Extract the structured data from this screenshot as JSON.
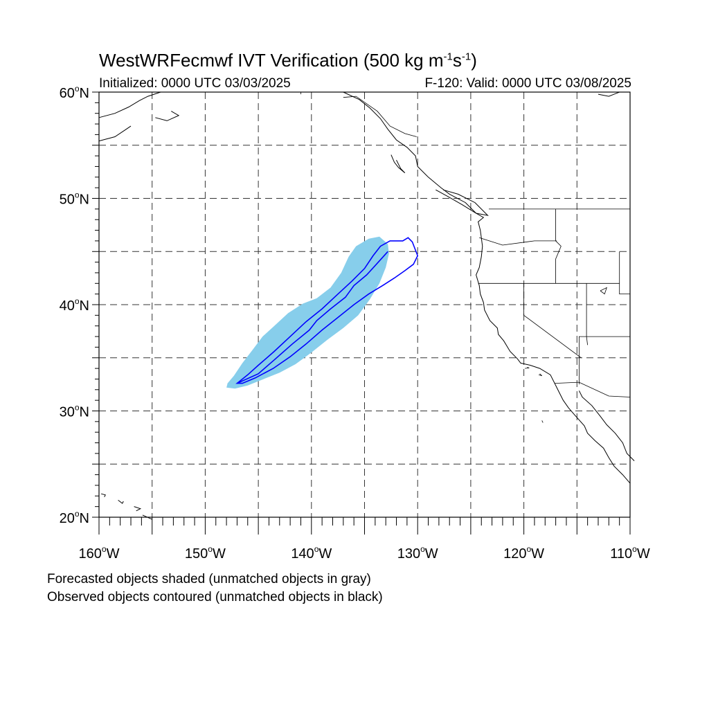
{
  "header": {
    "title_main": "WestWRFecmwf IVT Verification (500 kg m",
    "title_sup1": "-1",
    "title_mid": "s",
    "title_sup2": "-1",
    "title_end": ")",
    "initialized": "Initialized: 0000 UTC 03/03/2025",
    "valid": "F-120: Valid: 0000 UTC 03/08/2025"
  },
  "map": {
    "lat_range": [
      20,
      60
    ],
    "lon_range": [
      -160,
      -110
    ],
    "lat_labels": [
      {
        "lat": 60,
        "num": "60",
        "deg": "o",
        "hemi": "N"
      },
      {
        "lat": 50,
        "num": "50",
        "deg": "o",
        "hemi": "N"
      },
      {
        "lat": 40,
        "num": "40",
        "deg": "o",
        "hemi": "N"
      },
      {
        "lat": 30,
        "num": "30",
        "deg": "o",
        "hemi": "N"
      },
      {
        "lat": 20,
        "num": "20",
        "deg": "o",
        "hemi": "N"
      }
    ],
    "lon_labels": [
      {
        "lon": -160,
        "num": "160",
        "deg": "o",
        "hemi": "W"
      },
      {
        "lon": -150,
        "num": "150",
        "deg": "o",
        "hemi": "W"
      },
      {
        "lon": -140,
        "num": "140",
        "deg": "o",
        "hemi": "W"
      },
      {
        "lon": -130,
        "num": "130",
        "deg": "o",
        "hemi": "W"
      },
      {
        "lon": -120,
        "num": "120",
        "deg": "o",
        "hemi": "W"
      },
      {
        "lon": -110,
        "num": "110",
        "deg": "o",
        "hemi": "W"
      }
    ],
    "grid_lats": [
      25,
      30,
      35,
      40,
      45,
      50,
      55
    ],
    "grid_lons": [
      -155,
      -150,
      -145,
      -140,
      -135,
      -130,
      -125,
      -120,
      -115
    ],
    "forecast_object": {
      "color": "#87ceeb",
      "matched": true,
      "outline": [
        [
          -148,
          32.2
        ],
        [
          -147.2,
          32.1
        ],
        [
          -146,
          32.4
        ],
        [
          -144.5,
          33.0
        ],
        [
          -143,
          33.6
        ],
        [
          -141.5,
          34.4
        ],
        [
          -140,
          35.5
        ],
        [
          -138.5,
          36.7
        ],
        [
          -137,
          37.8
        ],
        [
          -135.6,
          39.0
        ],
        [
          -134.5,
          40.5
        ],
        [
          -133.6,
          42.0
        ],
        [
          -133.0,
          43.5
        ],
        [
          -132.7,
          44.8
        ],
        [
          -132.8,
          45.7
        ],
        [
          -133.6,
          46.4
        ],
        [
          -134.6,
          46.2
        ],
        [
          -135.8,
          45.5
        ],
        [
          -136.5,
          44.5
        ],
        [
          -137.2,
          43.0
        ],
        [
          -138.2,
          41.6
        ],
        [
          -139.5,
          40.6
        ],
        [
          -140.8,
          40.1
        ],
        [
          -142.2,
          39.2
        ],
        [
          -143.5,
          38.0
        ],
        [
          -144.6,
          37.0
        ],
        [
          -145.5,
          35.8
        ],
        [
          -146.5,
          34.5
        ],
        [
          -147.3,
          33.3
        ],
        [
          -147.9,
          32.6
        ]
      ]
    },
    "observed_object": {
      "color": "#0000ff",
      "matched": true,
      "outline": [
        [
          -147,
          32.6
        ],
        [
          -146,
          33.4
        ],
        [
          -145,
          34.3
        ],
        [
          -143.5,
          35.6
        ],
        [
          -142,
          37.0
        ],
        [
          -140.5,
          38.4
        ],
        [
          -139,
          39.6
        ],
        [
          -137.5,
          41.0
        ],
        [
          -136.2,
          42.2
        ],
        [
          -135,
          43.4
        ],
        [
          -134.2,
          44.6
        ],
        [
          -133.5,
          45.5
        ],
        [
          -132.6,
          46.0
        ],
        [
          -131.4,
          46.0
        ],
        [
          -130.9,
          46.3
        ],
        [
          -130.5,
          45.9
        ],
        [
          -130.0,
          44.6
        ],
        [
          -130.4,
          43.8
        ],
        [
          -131.2,
          43.2
        ],
        [
          -132.2,
          42.5
        ],
        [
          -133.3,
          41.8
        ],
        [
          -134.6,
          41.0
        ],
        [
          -136.0,
          40.0
        ],
        [
          -137.5,
          38.8
        ],
        [
          -139.0,
          37.6
        ],
        [
          -140.5,
          36.3
        ],
        [
          -142,
          35.1
        ],
        [
          -143.6,
          34.0
        ],
        [
          -145.3,
          33.1
        ],
        [
          -146.5,
          32.6
        ]
      ],
      "spine": [
        [
          -147,
          32.6
        ],
        [
          -145,
          33.5
        ],
        [
          -143.5,
          34.8
        ],
        [
          -141.8,
          36.3
        ],
        [
          -140.2,
          37.6
        ],
        [
          -139.5,
          38.5
        ],
        [
          -138.2,
          39.6
        ],
        [
          -136.8,
          40.7
        ],
        [
          -136,
          41.8
        ],
        [
          -134.8,
          42.8
        ],
        [
          -133.7,
          44.0
        ],
        [
          -132.8,
          45.0
        ]
      ]
    },
    "coastlines": [
      [
        [
          -111,
          60
        ],
        [
          -112,
          59.6
        ],
        [
          -113,
          59.8
        ]
      ],
      [
        [
          -137,
          60
        ],
        [
          -135.5,
          59.3
        ],
        [
          -134.5,
          58.5
        ],
        [
          -133.5,
          57.5
        ],
        [
          -132.8,
          56.5
        ],
        [
          -132,
          55.5
        ],
        [
          -131,
          54.8
        ],
        [
          -130.2,
          54
        ],
        [
          -130,
          53
        ],
        [
          -129,
          52
        ],
        [
          -127.8,
          51
        ],
        [
          -127,
          50.4
        ],
        [
          -125.5,
          49.6
        ],
        [
          -124.5,
          48.6
        ],
        [
          -123.8,
          48.2
        ],
        [
          -124.3,
          47.8
        ],
        [
          -124.1,
          47
        ],
        [
          -124,
          46.3
        ],
        [
          -123.9,
          45.5
        ],
        [
          -124,
          44.5
        ],
        [
          -124.2,
          43.5
        ],
        [
          -124.5,
          42.8
        ],
        [
          -124.2,
          41.8
        ],
        [
          -124.1,
          41
        ],
        [
          -123.8,
          40.2
        ],
        [
          -123.7,
          39.5
        ],
        [
          -123.2,
          38.5
        ],
        [
          -122.5,
          37.8
        ],
        [
          -122.4,
          37.2
        ],
        [
          -121.9,
          36.6
        ],
        [
          -121.3,
          35.6
        ],
        [
          -120.6,
          34.9
        ],
        [
          -120.3,
          34.5
        ],
        [
          -119.4,
          34.3
        ],
        [
          -118.5,
          34
        ],
        [
          -117.5,
          33.4
        ],
        [
          -117.1,
          32.6
        ],
        [
          -116.7,
          31.8
        ],
        [
          -116.3,
          31
        ],
        [
          -115.8,
          30.3
        ],
        [
          -115.2,
          29.6
        ],
        [
          -114.3,
          28.6
        ],
        [
          -114,
          27.9
        ],
        [
          -113.3,
          27.2
        ],
        [
          -112.5,
          26.5
        ],
        [
          -112,
          25.6
        ],
        [
          -111.5,
          24.8
        ],
        [
          -110.7,
          24
        ],
        [
          -110,
          23.2
        ]
      ],
      [
        [
          -114.8,
          31.9
        ],
        [
          -114.5,
          31.3
        ],
        [
          -113.6,
          30.5
        ],
        [
          -112.8,
          29.5
        ],
        [
          -112.2,
          28.7
        ],
        [
          -111.4,
          27.9
        ],
        [
          -110.7,
          27
        ],
        [
          -110.3,
          26
        ],
        [
          -109.6,
          25.3
        ]
      ],
      [
        [
          -132.5,
          54.1
        ],
        [
          -132.2,
          53.4
        ],
        [
          -131.8,
          52.9
        ],
        [
          -131.2,
          52.4
        ],
        [
          -131.6,
          52.8
        ],
        [
          -132,
          53.6
        ]
      ],
      [
        [
          -128.3,
          50.8
        ],
        [
          -127.2,
          50.2
        ],
        [
          -125.8,
          49.4
        ],
        [
          -124.5,
          48.6
        ],
        [
          -123.4,
          48.4
        ],
        [
          -124.6,
          49.6
        ],
        [
          -126.2,
          50.4
        ],
        [
          -127.6,
          50.8
        ]
      ],
      [
        [
          -160,
          57.6
        ],
        [
          -158.5,
          58.0
        ],
        [
          -157.2,
          58.6
        ],
        [
          -156.2,
          59.2
        ],
        [
          -155.4,
          59.6
        ],
        [
          -154.2,
          60
        ]
      ],
      [
        [
          -160,
          55.4
        ],
        [
          -158.5,
          55.8
        ],
        [
          -157.6,
          56.4
        ],
        [
          -157.0,
          56.8
        ]
      ],
      [
        [
          -154.7,
          57.6
        ],
        [
          -153.6,
          57.3
        ],
        [
          -152.5,
          57.8
        ],
        [
          -153.2,
          58.2
        ]
      ],
      [
        [
          -159.8,
          22.2
        ],
        [
          -159.4,
          22.1
        ],
        [
          -159.5,
          21.9
        ]
      ],
      [
        [
          -158.2,
          21.6
        ],
        [
          -157.8,
          21.3
        ],
        [
          -157.7,
          21.5
        ]
      ],
      [
        [
          -156.7,
          21.0
        ],
        [
          -156.1,
          20.8
        ],
        [
          -156.5,
          20.6
        ]
      ],
      [
        [
          -155.9,
          20.2
        ],
        [
          -155.0,
          19.8
        ]
      ]
    ],
    "borders": [
      [
        [
          -123.3,
          49
        ],
        [
          -110,
          49
        ]
      ],
      [
        [
          -117,
          49
        ],
        [
          -117,
          46
        ],
        [
          -116.5,
          45.5
        ],
        [
          -117,
          44.3
        ],
        [
          -117,
          42
        ]
      ],
      [
        [
          -124.3,
          42
        ],
        [
          -111,
          42
        ]
      ],
      [
        [
          -124.2,
          46.3
        ],
        [
          -122,
          45.6
        ],
        [
          -119,
          46
        ],
        [
          -116.9,
          46
        ]
      ],
      [
        [
          -120,
          42
        ],
        [
          -120,
          39
        ],
        [
          -114.6,
          35
        ]
      ],
      [
        [
          -111,
          45
        ],
        [
          -111,
          41
        ],
        [
          -110,
          41
        ]
      ],
      [
        [
          -114.1,
          42
        ],
        [
          -114.1,
          37
        ],
        [
          -114,
          36.2
        ]
      ],
      [
        [
          -114.8,
          32.5
        ],
        [
          -114.8,
          37
        ],
        [
          -110,
          37
        ]
      ],
      [
        [
          -117.1,
          32.6
        ],
        [
          -114.8,
          32.7
        ],
        [
          -112,
          31.4
        ],
        [
          -110,
          31.3
        ]
      ],
      [
        [
          -141,
          60
        ],
        [
          -141,
          59.8
        ]
      ],
      [
        [
          -137,
          59.5
        ],
        [
          -135.8,
          59.6
        ],
        [
          -133.8,
          58.2
        ],
        [
          -132.6,
          56.8
        ],
        [
          -131.2,
          56.1
        ],
        [
          -130.1,
          55.8
        ]
      ]
    ],
    "lakes_islands": [
      [
        [
          -112.8,
          41.3
        ],
        [
          -112.2,
          41.6
        ],
        [
          -112.4,
          41.0
        ],
        [
          -112.8,
          41.3
        ]
      ],
      [
        [
          -118.6,
          33.4
        ],
        [
          -118.3,
          33.3
        ],
        [
          -118.5,
          33.5
        ]
      ],
      [
        [
          -119.9,
          34.0
        ],
        [
          -119.5,
          34.05
        ],
        [
          -119.7,
          34.1
        ]
      ],
      [
        [
          -118.3,
          29.1
        ],
        [
          -118.2,
          28.9
        ]
      ]
    ]
  },
  "footer": {
    "line1": "Forecasted objects shaded (unmatched objects in gray)",
    "line2": "Observed objects contoured (unmatched objects in black)"
  }
}
